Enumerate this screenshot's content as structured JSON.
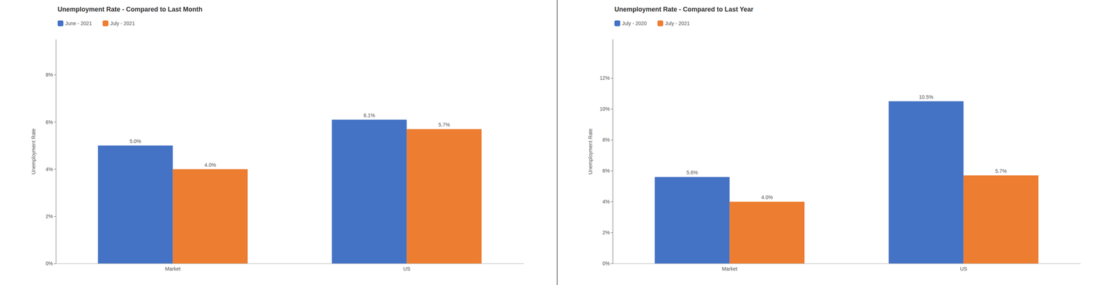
{
  "chart_data": [
    {
      "type": "bar",
      "title": "Unemployment Rate - Compared to Last Month",
      "categories": [
        "Market",
        "US"
      ],
      "series": [
        {
          "name": "June - 2021",
          "color": "#4472C4",
          "values": [
            5.0,
            6.1
          ],
          "value_labels": [
            "5.0%",
            "6.1%"
          ]
        },
        {
          "name": "July - 2021",
          "color": "#ED7D31",
          "values": [
            4.0,
            5.7
          ],
          "value_labels": [
            "4.0%",
            "5.7%"
          ]
        }
      ],
      "ylabel": "Unemployment Rate",
      "ylim": [
        0,
        9.5
      ],
      "yticks": [
        {
          "value": 0,
          "label": "0%"
        },
        {
          "value": 2,
          "label": "2%"
        },
        {
          "value": 4,
          "label": "4%"
        },
        {
          "value": 6,
          "label": "6%"
        },
        {
          "value": 8,
          "label": "8%"
        }
      ],
      "grid": false,
      "legend": "top",
      "data_labels": true
    },
    {
      "type": "bar",
      "title": "Unemployment Rate - Compared to Last Year",
      "categories": [
        "Market",
        "US"
      ],
      "series": [
        {
          "name": "July - 2020",
          "color": "#4472C4",
          "values": [
            5.6,
            10.5
          ],
          "value_labels": [
            "5.6%",
            "10.5%"
          ]
        },
        {
          "name": "July - 2021",
          "color": "#ED7D31",
          "values": [
            4.0,
            5.7
          ],
          "value_labels": [
            "4.0%",
            "5.7%"
          ]
        }
      ],
      "ylabel": "Unemployment Rate",
      "ylim": [
        0,
        14.5
      ],
      "yticks": [
        {
          "value": 0,
          "label": "0%"
        },
        {
          "value": 2,
          "label": "2%"
        },
        {
          "value": 4,
          "label": "4%"
        },
        {
          "value": 6,
          "label": "6%"
        },
        {
          "value": 8,
          "label": "8%"
        },
        {
          "value": 10,
          "label": "10%"
        },
        {
          "value": 12,
          "label": "12%"
        }
      ],
      "grid": false,
      "legend": "top",
      "data_labels": true
    }
  ]
}
